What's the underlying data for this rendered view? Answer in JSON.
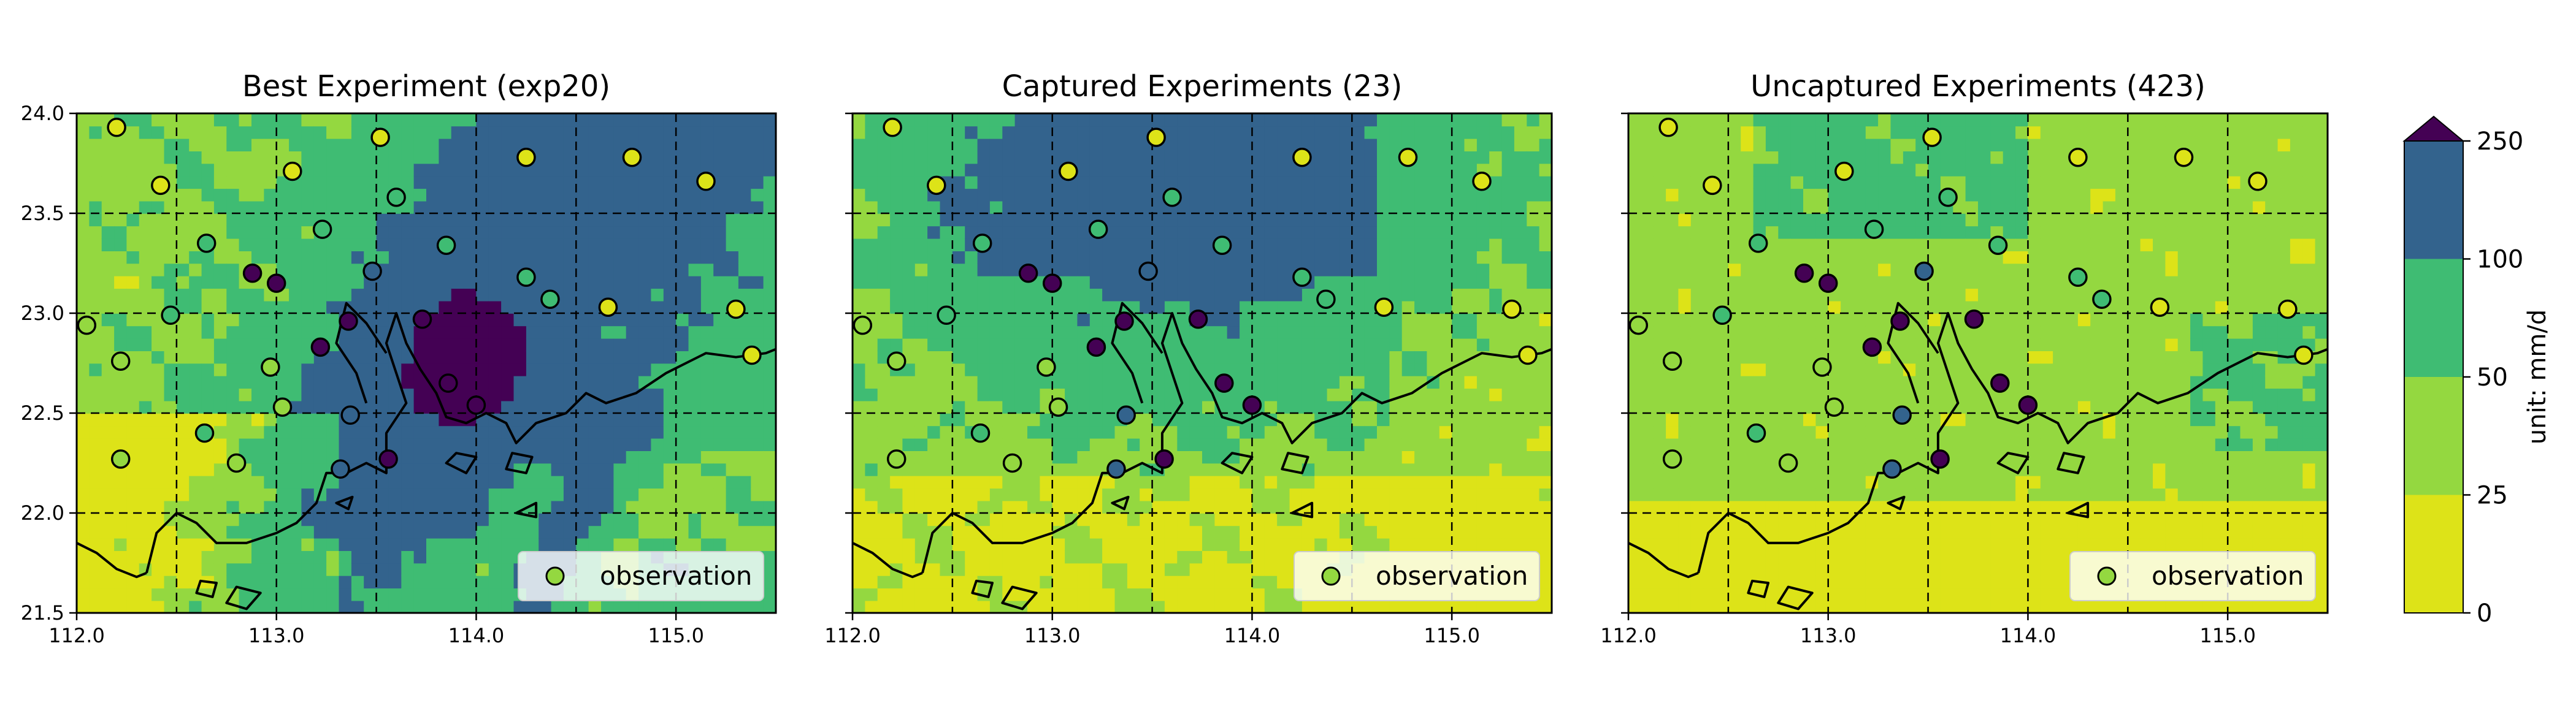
{
  "chart_data": [
    {
      "type": "heatmap",
      "title": "Best Experiment (exp20)",
      "xlim": [
        112.0,
        115.5
      ],
      "ylim": [
        21.5,
        24.0
      ],
      "xticks": [
        "112.0",
        "113.0",
        "114.0",
        "115.0"
      ],
      "yticks": [
        "21.5",
        "22.0",
        "22.5",
        "23.0",
        "23.5",
        "24.0"
      ],
      "grid": true,
      "legend": {
        "label": "observation",
        "placement": "bottom-right"
      },
      "field_pattern": "heavy",
      "observations": [
        {
          "lon": 112.2,
          "lat": 23.93,
          "class": 0
        },
        {
          "lon": 112.42,
          "lat": 23.64,
          "class": 0
        },
        {
          "lon": 113.08,
          "lat": 23.71,
          "class": 0
        },
        {
          "lon": 113.52,
          "lat": 23.88,
          "class": 0
        },
        {
          "lon": 114.25,
          "lat": 23.78,
          "class": 0
        },
        {
          "lon": 114.78,
          "lat": 23.78,
          "class": 0
        },
        {
          "lon": 115.15,
          "lat": 23.66,
          "class": 0
        },
        {
          "lon": 112.05,
          "lat": 22.94,
          "class": 1
        },
        {
          "lon": 112.22,
          "lat": 22.76,
          "class": 1
        },
        {
          "lon": 112.47,
          "lat": 22.99,
          "class": 2
        },
        {
          "lon": 112.65,
          "lat": 23.35,
          "class": 2
        },
        {
          "lon": 113.23,
          "lat": 23.42,
          "class": 2
        },
        {
          "lon": 113.6,
          "lat": 23.58,
          "class": 2
        },
        {
          "lon": 113.85,
          "lat": 23.34,
          "class": 2
        },
        {
          "lon": 114.25,
          "lat": 23.18,
          "class": 2
        },
        {
          "lon": 114.37,
          "lat": 23.07,
          "class": 2
        },
        {
          "lon": 114.66,
          "lat": 23.03,
          "class": 0
        },
        {
          "lon": 115.3,
          "lat": 23.02,
          "class": 0
        },
        {
          "lon": 115.38,
          "lat": 22.79,
          "class": 0
        },
        {
          "lon": 112.88,
          "lat": 23.2,
          "class": 4
        },
        {
          "lon": 113.0,
          "lat": 23.15,
          "class": 4
        },
        {
          "lon": 113.48,
          "lat": 23.21,
          "class": 3
        },
        {
          "lon": 113.36,
          "lat": 22.96,
          "class": 4
        },
        {
          "lon": 113.73,
          "lat": 22.97,
          "class": 4
        },
        {
          "lon": 113.22,
          "lat": 22.83,
          "class": 4
        },
        {
          "lon": 112.97,
          "lat": 22.73,
          "class": 1
        },
        {
          "lon": 113.03,
          "lat": 22.53,
          "class": 1
        },
        {
          "lon": 113.37,
          "lat": 22.49,
          "class": 3
        },
        {
          "lon": 113.86,
          "lat": 22.65,
          "class": 4
        },
        {
          "lon": 114.0,
          "lat": 22.54,
          "class": 4
        },
        {
          "lon": 112.64,
          "lat": 22.4,
          "class": 2
        },
        {
          "lon": 112.22,
          "lat": 22.27,
          "class": 1
        },
        {
          "lon": 112.8,
          "lat": 22.25,
          "class": 1
        },
        {
          "lon": 113.32,
          "lat": 22.22,
          "class": 3
        },
        {
          "lon": 113.56,
          "lat": 22.27,
          "class": 4
        }
      ]
    },
    {
      "type": "heatmap",
      "title": "Captured Experiments (23)",
      "xlim": [
        112.0,
        115.5
      ],
      "ylim": [
        21.5,
        24.0
      ],
      "xticks": [
        "112.0",
        "113.0",
        "114.0",
        "115.0"
      ],
      "yticks": [
        "21.5",
        "22.0",
        "22.5",
        "23.0",
        "23.5",
        "24.0"
      ],
      "grid": true,
      "legend": {
        "label": "observation",
        "placement": "bottom-right"
      },
      "field_pattern": "captured"
    },
    {
      "type": "heatmap",
      "title": "Uncaptured Experiments (423)",
      "xlim": [
        112.0,
        115.5
      ],
      "ylim": [
        21.5,
        24.0
      ],
      "xticks": [
        "112.0",
        "113.0",
        "114.0",
        "115.0"
      ],
      "yticks": [
        "21.5",
        "22.0",
        "22.5",
        "23.0",
        "23.5",
        "24.0"
      ],
      "grid": true,
      "legend": {
        "label": "observation",
        "placement": "bottom-right"
      },
      "field_pattern": "uncaptured"
    }
  ],
  "colorbar": {
    "label": "unit: mm/d",
    "ticks": [
      "0",
      "25",
      "50",
      "100",
      "250"
    ],
    "levels": [
      0,
      25,
      50,
      100,
      250
    ],
    "extend": "max",
    "colors": [
      "#dde318",
      "#94d840",
      "#3fbc73",
      "#33638d",
      "#440154"
    ]
  }
}
